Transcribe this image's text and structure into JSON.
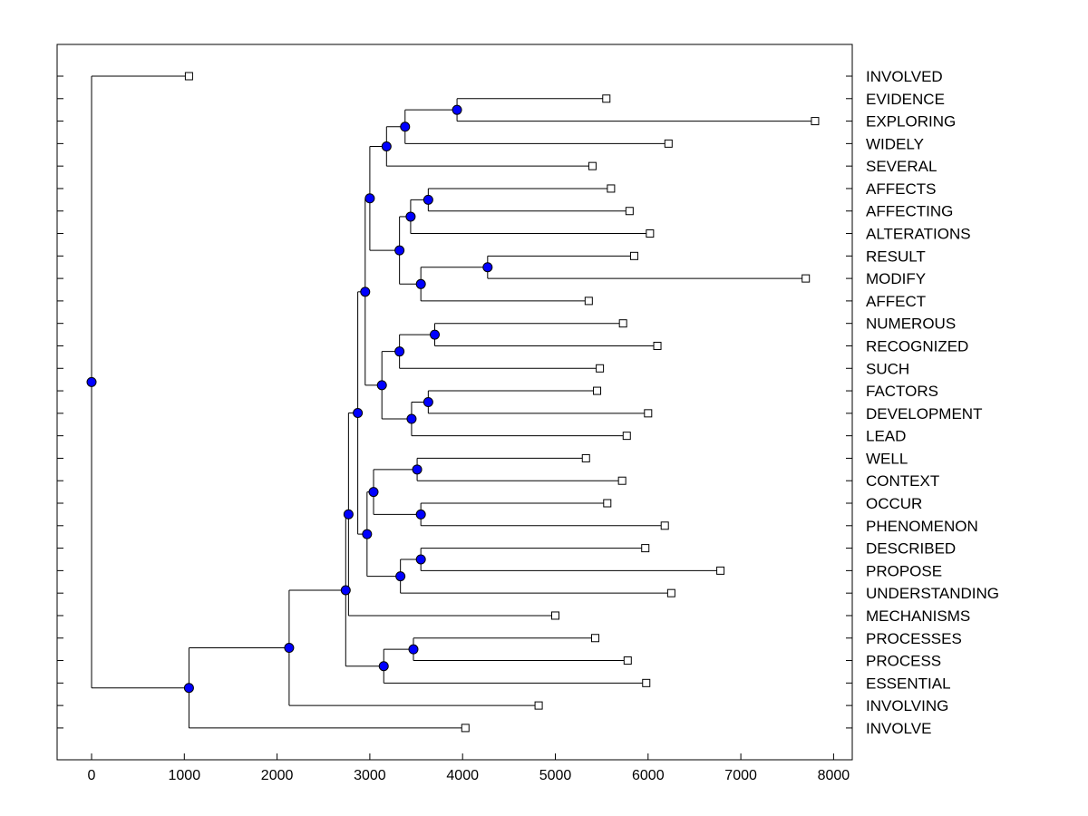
{
  "chart_data": {
    "type": "dendrogram",
    "title": "",
    "xlabel": "",
    "ylabel": "",
    "xlim": [
      -380,
      8180
    ],
    "xticks": [
      0,
      1000,
      2000,
      3000,
      4000,
      5000,
      6000,
      7000,
      8000
    ],
    "xtick_labels": [
      "0",
      "1000",
      "2000",
      "3000",
      "4000",
      "5000",
      "6000",
      "7000",
      "8000"
    ],
    "leaf_marker_color": "#ffffff",
    "node_marker_color": "#0000ff",
    "leaves": [
      {
        "name": "INVOLVED",
        "x": 1050
      },
      {
        "name": "EVIDENCE",
        "x": 5550
      },
      {
        "name": "EXPLORING",
        "x": 7800
      },
      {
        "name": "WIDELY",
        "x": 6220
      },
      {
        "name": "SEVERAL",
        "x": 5400
      },
      {
        "name": "AFFECTS",
        "x": 5600
      },
      {
        "name": "AFFECTING",
        "x": 5800
      },
      {
        "name": "ALTERATIONS",
        "x": 6020
      },
      {
        "name": "RESULT",
        "x": 5850
      },
      {
        "name": "MODIFY",
        "x": 7700
      },
      {
        "name": "AFFECT",
        "x": 5360
      },
      {
        "name": "NUMEROUS",
        "x": 5730
      },
      {
        "name": "RECOGNIZED",
        "x": 6100
      },
      {
        "name": "SUCH",
        "x": 5480
      },
      {
        "name": "FACTORS",
        "x": 5450
      },
      {
        "name": "DEVELOPMENT",
        "x": 6000
      },
      {
        "name": "LEAD",
        "x": 5770
      },
      {
        "name": "WELL",
        "x": 5330
      },
      {
        "name": "CONTEXT",
        "x": 5720
      },
      {
        "name": "OCCUR",
        "x": 5560
      },
      {
        "name": "PHENOMENON",
        "x": 6180
      },
      {
        "name": "DESCRIBED",
        "x": 5970
      },
      {
        "name": "PROPOSE",
        "x": 6780
      },
      {
        "name": "UNDERSTANDING",
        "x": 6250
      },
      {
        "name": "MECHANISMS",
        "x": 5000
      },
      {
        "name": "PROCESSES",
        "x": 5430
      },
      {
        "name": "PROCESS",
        "x": 5780
      },
      {
        "name": "ESSENTIAL",
        "x": 5980
      },
      {
        "name": "INVOLVING",
        "x": 4820
      },
      {
        "name": "INVOLVE",
        "x": 4030
      }
    ],
    "nodes": [
      {
        "id": "n1",
        "x": 3940,
        "children": [
          "EVIDENCE",
          "EXPLORING"
        ]
      },
      {
        "id": "n2",
        "x": 3380,
        "children": [
          "n1",
          "WIDELY"
        ]
      },
      {
        "id": "n3",
        "x": 3180,
        "children": [
          "n2",
          "SEVERAL"
        ]
      },
      {
        "id": "n4",
        "x": 3630,
        "children": [
          "AFFECTS",
          "AFFECTING"
        ]
      },
      {
        "id": "n5",
        "x": 3440,
        "children": [
          "n4",
          "ALTERATIONS"
        ]
      },
      {
        "id": "n6",
        "x": 4270,
        "children": [
          "RESULT",
          "MODIFY"
        ]
      },
      {
        "id": "n7",
        "x": 3550,
        "children": [
          "n6",
          "AFFECT"
        ]
      },
      {
        "id": "n8",
        "x": 3320,
        "children": [
          "n5",
          "n7"
        ]
      },
      {
        "id": "n9",
        "x": 3000,
        "children": [
          "n3",
          "n8"
        ]
      },
      {
        "id": "n10",
        "x": 3700,
        "children": [
          "NUMEROUS",
          "RECOGNIZED"
        ]
      },
      {
        "id": "n11",
        "x": 3320,
        "children": [
          "n10",
          "SUCH"
        ]
      },
      {
        "id": "n12",
        "x": 3630,
        "children": [
          "FACTORS",
          "DEVELOPMENT"
        ]
      },
      {
        "id": "n13",
        "x": 3450,
        "children": [
          "n12",
          "LEAD"
        ]
      },
      {
        "id": "n14",
        "x": 3130,
        "children": [
          "n11",
          "n13"
        ]
      },
      {
        "id": "n15",
        "x": 2950,
        "children": [
          "n9",
          "n14"
        ]
      },
      {
        "id": "n16",
        "x": 3510,
        "children": [
          "WELL",
          "CONTEXT"
        ]
      },
      {
        "id": "n17",
        "x": 3550,
        "children": [
          "OCCUR",
          "PHENOMENON"
        ]
      },
      {
        "id": "n18",
        "x": 3040,
        "children": [
          "n16",
          "n17"
        ]
      },
      {
        "id": "n19",
        "x": 3550,
        "children": [
          "DESCRIBED",
          "PROPOSE"
        ]
      },
      {
        "id": "n20",
        "x": 3330,
        "children": [
          "n19",
          "UNDERSTANDING"
        ]
      },
      {
        "id": "n21",
        "x": 2970,
        "children": [
          "n18",
          "n20"
        ]
      },
      {
        "id": "n22",
        "x": 2870,
        "children": [
          "n15",
          "n21"
        ]
      },
      {
        "id": "n23",
        "x": 2770,
        "children": [
          "n22",
          "MECHANISMS"
        ]
      },
      {
        "id": "n24",
        "x": 3470,
        "children": [
          "PROCESSES",
          "PROCESS"
        ]
      },
      {
        "id": "n25",
        "x": 3150,
        "children": [
          "n24",
          "ESSENTIAL"
        ]
      },
      {
        "id": "n26",
        "x": 2740,
        "children": [
          "n23",
          "n25"
        ]
      },
      {
        "id": "n27",
        "x": 2130,
        "children": [
          "n26",
          "INVOLVING"
        ]
      },
      {
        "id": "n28",
        "x": 1050,
        "children": [
          "n27",
          "INVOLVE"
        ]
      },
      {
        "id": "n29",
        "x": 0,
        "children": [
          "INVOLVED",
          "n28"
        ]
      }
    ]
  }
}
